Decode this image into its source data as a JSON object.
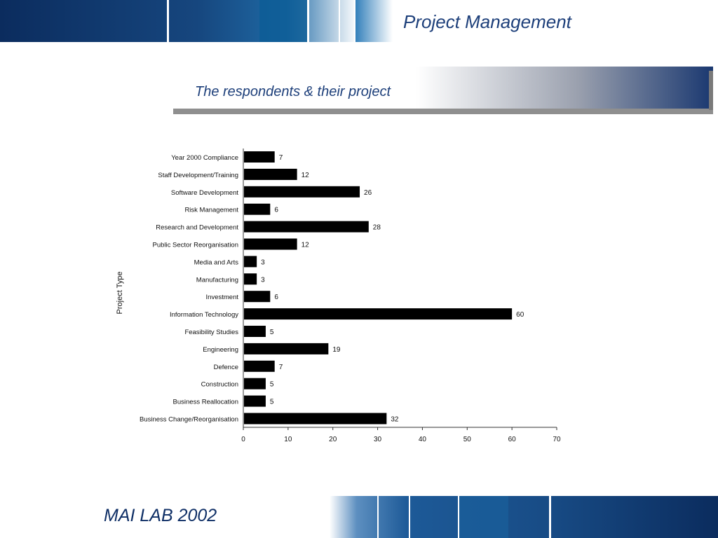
{
  "header": {
    "title": "Project Management"
  },
  "subtitle": "The respondents & their project",
  "footer": {
    "text": "MAI LAB 2002"
  },
  "colors": {
    "navy": "#0f2f66",
    "accent_blue": "#1d3f7a",
    "bar": "#000000"
  },
  "chart_data": {
    "type": "bar",
    "orientation": "horizontal",
    "ylabel": "Project Type",
    "xlabel": "",
    "xlim": [
      0,
      70
    ],
    "xticks": [
      0,
      10,
      20,
      30,
      40,
      50,
      60,
      70
    ],
    "categories": [
      "Year 2000 Compliance",
      "Staff Development/Training",
      "Software Development",
      "Risk Management",
      "Research and Development",
      "Public Sector Reorganisation",
      "Media and Arts",
      "Manufacturing",
      "Investment",
      "Information Technology",
      "Feasibility Studies",
      "Engineering",
      "Defence",
      "Construction",
      "Business Reallocation",
      "Business Change/Reorganisation"
    ],
    "values": [
      7,
      12,
      26,
      6,
      28,
      12,
      3,
      3,
      6,
      60,
      5,
      19,
      7,
      5,
      5,
      32
    ],
    "grid": false,
    "legend": "none"
  }
}
